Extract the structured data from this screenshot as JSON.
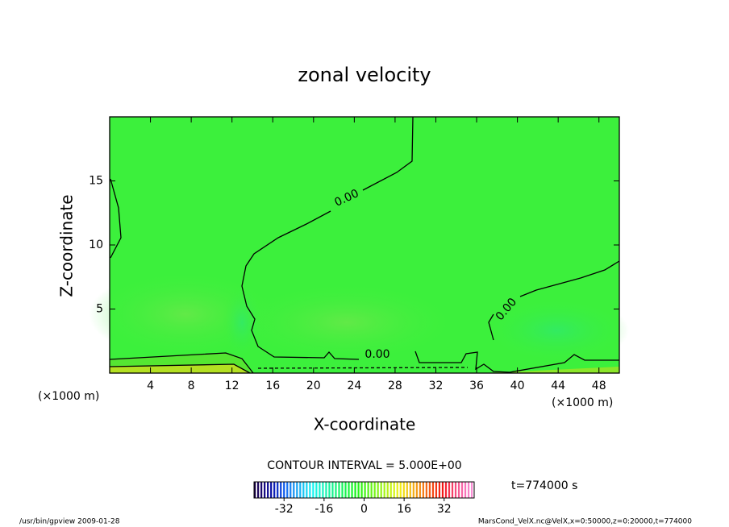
{
  "chart_data": {
    "type": "contour",
    "title": "zonal velocity",
    "xlabel": "X-coordinate",
    "ylabel": "Z-coordinate",
    "x_unit_label": "(×1000 m)",
    "xlim": [
      0,
      50
    ],
    "xticks": [
      4,
      8,
      12,
      16,
      20,
      24,
      28,
      32,
      36,
      40,
      44,
      48
    ],
    "ylim": [
      0,
      20
    ],
    "yticks": [
      5,
      10,
      15
    ],
    "contour_levels": [
      {
        "value": 0,
        "label": "0.00"
      }
    ],
    "contour_interval_text": "CONTOUR INTERVAL = 5.000E+00",
    "time_text": "t=774000 s",
    "colorbar_lim": [
      -44,
      44
    ],
    "colorbar_ticks": [
      -32,
      -16,
      0,
      16,
      32
    ],
    "footer_left": "/usr/bin/gpview  2009-01-28",
    "footer_right": "MarsCond_VelX.nc@VelX,x=0:50000,z=0:20000,t=774000"
  }
}
